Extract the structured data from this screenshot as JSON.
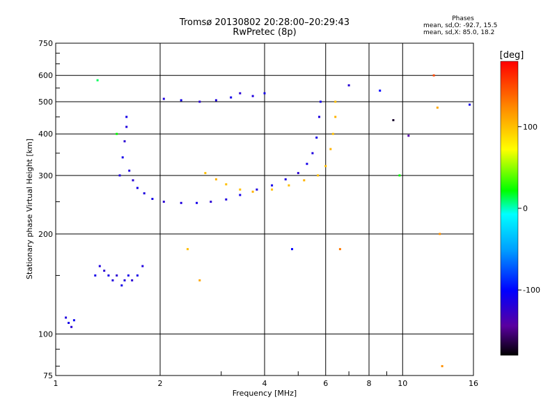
{
  "header": {
    "title_line1": "Tromsø 20130802 20:28:00–20:29:43",
    "title_line2": "RwPretec (8p)"
  },
  "phases_box": {
    "title": "Phases",
    "line_o": "mean, sd,O: -92.7, 15.5",
    "line_x": "mean, sd,X: 85.0, 18.2"
  },
  "colorbar": {
    "unit_label": "[deg]",
    "tick_labels": [
      "100",
      "0",
      "-100"
    ],
    "tick_values": [
      100,
      0,
      -100
    ],
    "range": [
      -180,
      180
    ]
  },
  "chart_data": {
    "type": "scatter",
    "title": "Tromsø 20130802 20:28:00–20:29:43",
    "subtitle": "RwPretec (8p)",
    "xlabel": "Frequency [MHz]",
    "ylabel": "Stationary phase Virtual Height [km]",
    "x_scale": "log",
    "y_scale": "log",
    "xlim": [
      1,
      16
    ],
    "ylim": [
      75,
      750
    ],
    "x_ticks": [
      1,
      2,
      4,
      6,
      8,
      10,
      16
    ],
    "x_tick_labels": [
      "1",
      "2",
      "4",
      "6",
      "8",
      "10",
      "16"
    ],
    "y_ticks": [
      75,
      100,
      200,
      300,
      400,
      500,
      600,
      750
    ],
    "y_tick_labels": [
      "75",
      "100",
      "200",
      "300",
      "400",
      "500",
      "600",
      "750"
    ],
    "grid": true,
    "color_variable": "phase [deg]",
    "color_range": [
      -180,
      180
    ],
    "series": [
      {
        "values": [
          [
            1.07,
            112,
            -115
          ],
          [
            1.09,
            108,
            -110
          ],
          [
            1.11,
            105,
            -120
          ],
          [
            1.13,
            110,
            -105
          ],
          [
            1.3,
            150,
            -110
          ],
          [
            1.34,
            160,
            -115
          ],
          [
            1.38,
            155,
            -120
          ],
          [
            1.42,
            150,
            -110
          ],
          [
            1.46,
            145,
            -115
          ],
          [
            1.5,
            150,
            -120
          ],
          [
            1.55,
            140,
            -110
          ],
          [
            1.58,
            145,
            -115
          ],
          [
            1.62,
            150,
            -110
          ],
          [
            1.66,
            145,
            -120
          ],
          [
            1.72,
            150,
            -110
          ],
          [
            1.78,
            160,
            -115
          ],
          [
            1.53,
            300,
            -115
          ],
          [
            1.56,
            340,
            -110
          ],
          [
            1.58,
            380,
            -120
          ],
          [
            1.6,
            420,
            -115
          ],
          [
            1.6,
            450,
            -110
          ],
          [
            1.63,
            310,
            -115
          ],
          [
            1.67,
            290,
            -120
          ],
          [
            1.72,
            275,
            -110
          ],
          [
            1.8,
            265,
            -115
          ],
          [
            1.9,
            255,
            -110
          ],
          [
            2.05,
            250,
            -120
          ],
          [
            2.3,
            248,
            -115
          ],
          [
            2.55,
            248,
            -110
          ],
          [
            2.8,
            250,
            -120
          ],
          [
            3.1,
            254,
            -115
          ],
          [
            3.4,
            262,
            -110
          ],
          [
            3.8,
            272,
            -115
          ],
          [
            4.2,
            280,
            -110
          ],
          [
            4.6,
            292,
            -115
          ],
          [
            5.0,
            305,
            -120
          ],
          [
            5.3,
            325,
            -110
          ],
          [
            5.5,
            350,
            -115
          ],
          [
            5.65,
            390,
            -110
          ],
          [
            5.75,
            450,
            -115
          ],
          [
            5.8,
            500,
            -110
          ],
          [
            2.05,
            510,
            -115
          ],
          [
            2.3,
            505,
            -110
          ],
          [
            2.6,
            500,
            -120
          ],
          [
            2.9,
            505,
            -115
          ],
          [
            3.2,
            515,
            -110
          ],
          [
            3.4,
            530,
            -120
          ],
          [
            3.7,
            520,
            -115
          ],
          [
            4.0,
            530,
            -110
          ],
          [
            2.7,
            305,
            100
          ],
          [
            2.9,
            292,
            105
          ],
          [
            3.1,
            282,
            100
          ],
          [
            3.4,
            272,
            100
          ],
          [
            3.7,
            268,
            105
          ],
          [
            4.2,
            272,
            100
          ],
          [
            4.7,
            280,
            100
          ],
          [
            5.2,
            290,
            105
          ],
          [
            5.7,
            300,
            100
          ],
          [
            6.0,
            320,
            100
          ],
          [
            6.2,
            360,
            105
          ],
          [
            6.3,
            400,
            100
          ],
          [
            6.4,
            450,
            105
          ],
          [
            6.4,
            500,
            100
          ],
          [
            1.32,
            580,
            10
          ],
          [
            1.5,
            400,
            20
          ],
          [
            2.4,
            180,
            100
          ],
          [
            2.6,
            145,
            110
          ],
          [
            4.8,
            180,
            -100
          ],
          [
            6.6,
            180,
            130
          ],
          [
            7.0,
            560,
            -120
          ],
          [
            8.6,
            540,
            -100
          ],
          [
            9.4,
            440,
            -170
          ],
          [
            9.8,
            300,
            20
          ],
          [
            10.4,
            395,
            -140
          ],
          [
            12.3,
            600,
            150
          ],
          [
            12.8,
            200,
            120
          ],
          [
            12.6,
            480,
            110
          ],
          [
            13.0,
            80,
            120
          ],
          [
            15.6,
            490,
            -110
          ]
        ]
      }
    ]
  }
}
